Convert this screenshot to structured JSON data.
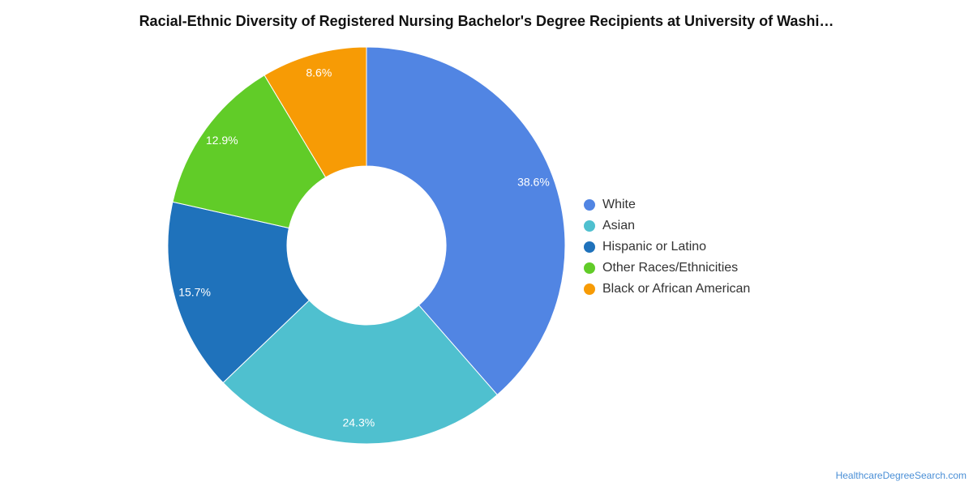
{
  "chart_data": {
    "type": "pie",
    "variant": "donut",
    "title": "Racial-Ethnic Diversity of Registered Nursing Bachelor's Degree Recipients at University of Washi…",
    "categories": [
      "White",
      "Asian",
      "Hispanic or Latino",
      "Other Races/Ethnicities",
      "Black or African American"
    ],
    "values": [
      38.6,
      24.3,
      15.7,
      12.9,
      8.6
    ],
    "value_labels": [
      "38.6%",
      "24.3%",
      "15.7%",
      "12.9%",
      "8.6%"
    ],
    "colors": [
      "#5185e3",
      "#4fc0cf",
      "#1f72bb",
      "#61cc28",
      "#f79b05"
    ],
    "legend_position": "right"
  },
  "footer": {
    "credit": "HealthcareDegreeSearch.com"
  }
}
